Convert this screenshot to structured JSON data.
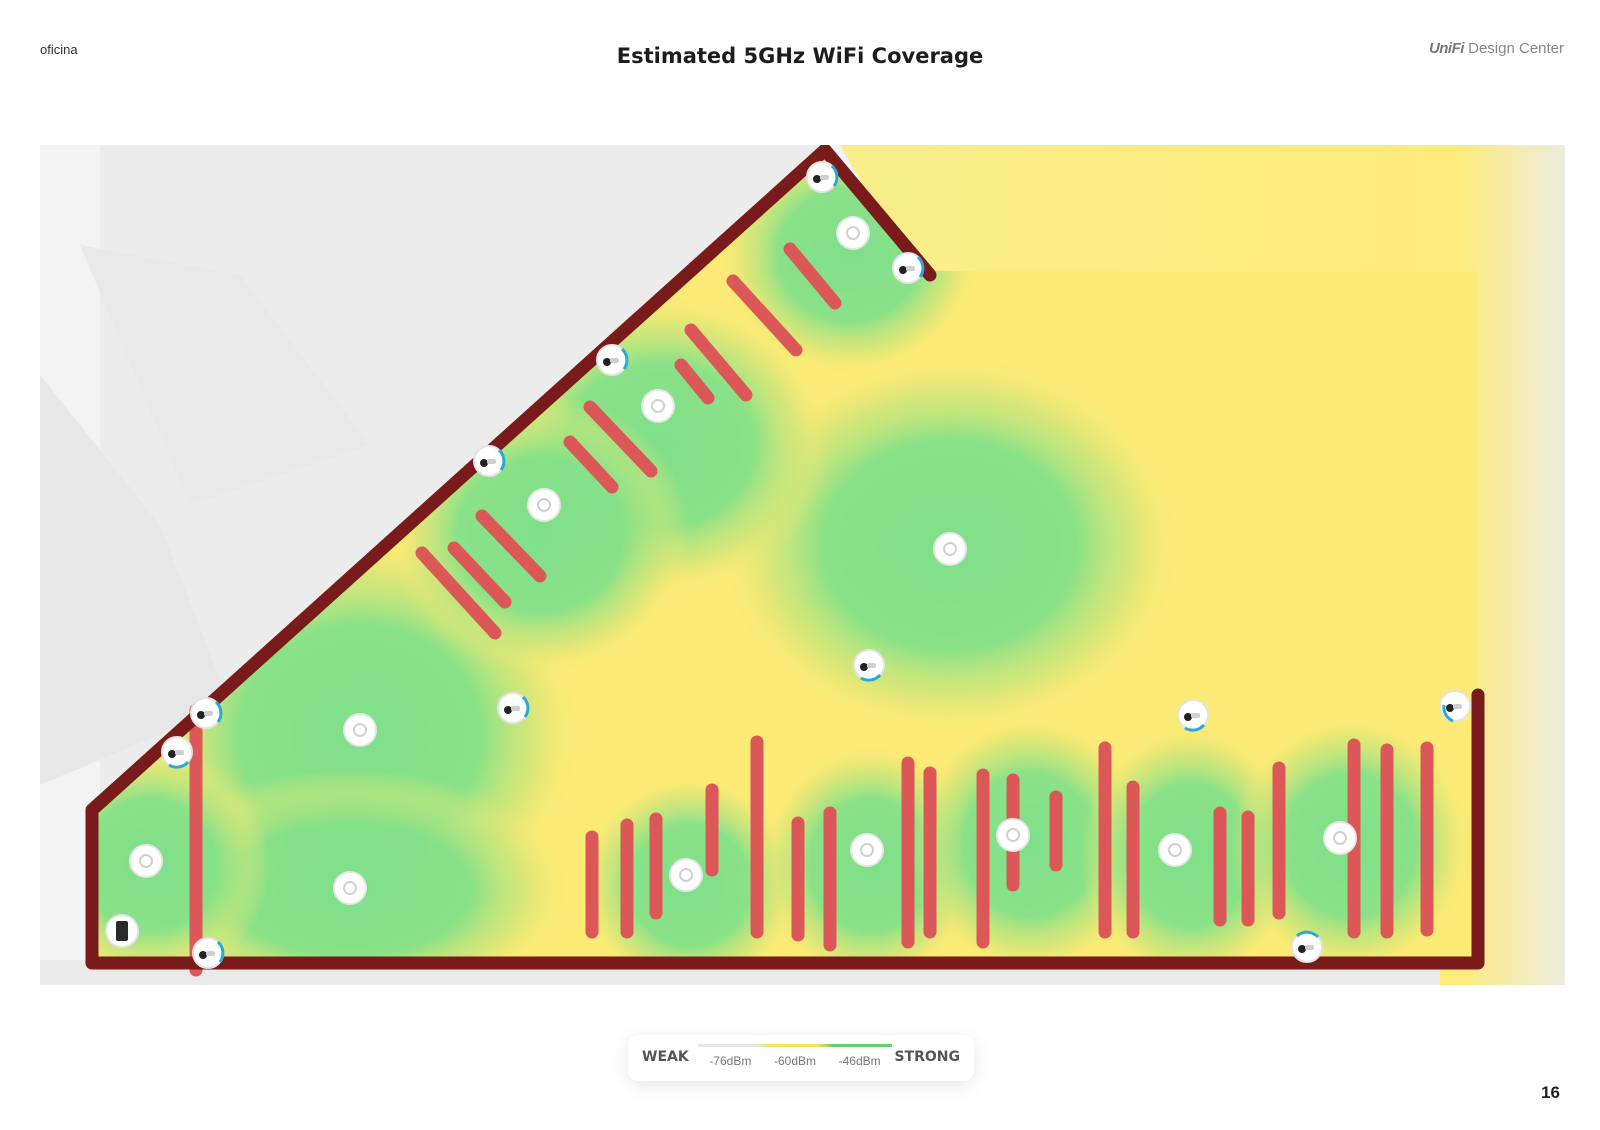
{
  "header": {
    "site_name": "oficina",
    "title": "Estimated 5GHz WiFi Coverage",
    "brand_logo": "UniFi",
    "brand_suffix": "Design Center"
  },
  "legend": {
    "weak_label": "WEAK",
    "strong_label": "STRONG",
    "ticks": [
      "-76dBm",
      "-60dBm",
      "-46dBm"
    ],
    "colors": {
      "weak": "#e6e6e6",
      "medium": "#f4e35a",
      "strong": "#62cf6b"
    }
  },
  "map": {
    "colors": {
      "wall": "#7a1b1b",
      "obstacle": "#d9534f",
      "strong": "#7fe08a",
      "medium": "#fbea75",
      "background": "#f2f2f2"
    },
    "icons": {
      "access_point": "access-point-icon",
      "camera": "camera-icon",
      "gateway": "gateway-icon"
    }
  },
  "footer": {
    "page_number": "16"
  }
}
